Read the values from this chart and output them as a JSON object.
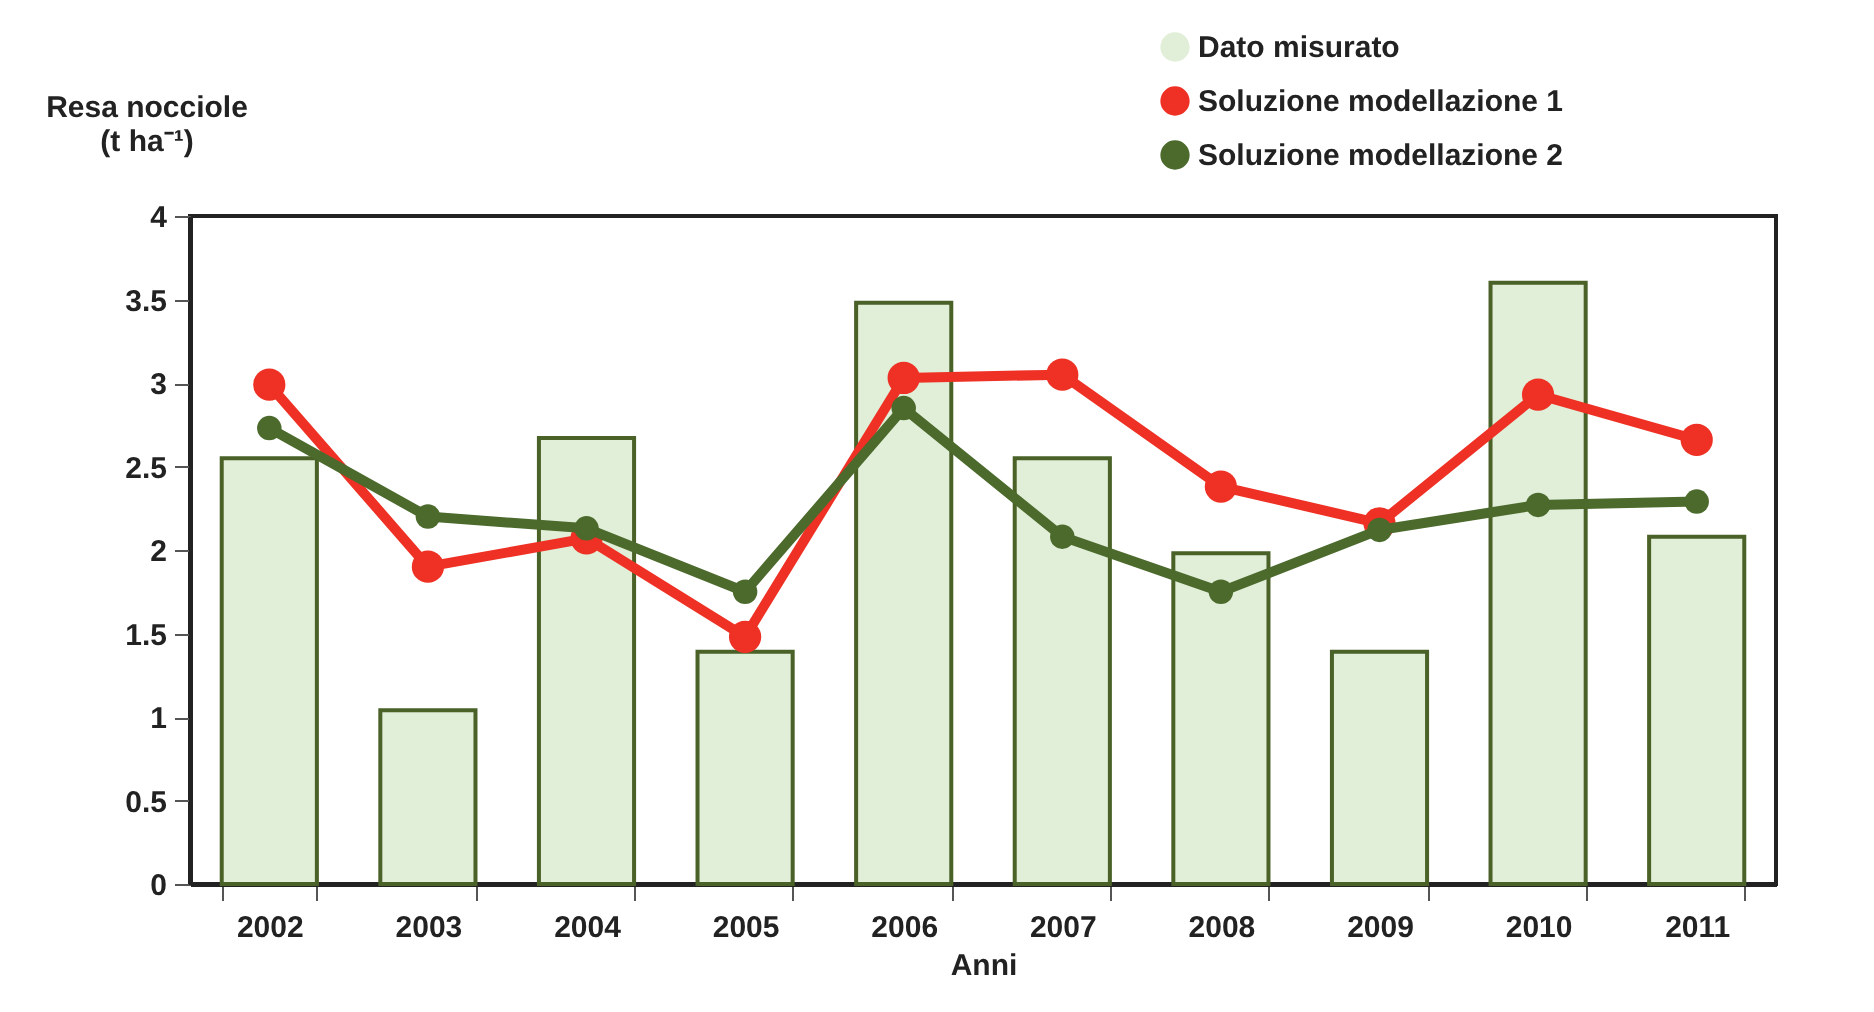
{
  "chart_data": {
    "type": "bar",
    "xlabel": "Anni",
    "ylabel": "Resa nocciole\n(t ha⁻¹)",
    "categories": [
      "2002",
      "2003",
      "2004",
      "2005",
      "2006",
      "2007",
      "2008",
      "2009",
      "2010",
      "2011"
    ],
    "series": [
      {
        "name": "Dato misurato",
        "color": "#e1eed8",
        "values": [
          2.55,
          1.04,
          2.67,
          1.39,
          3.48,
          2.55,
          1.98,
          1.39,
          3.6,
          2.08
        ]
      },
      {
        "name": "Soluzione modellazione 1",
        "type": "line",
        "color": "#ee3124",
        "values": [
          2.99,
          1.9,
          2.07,
          1.48,
          3.03,
          3.05,
          2.38,
          2.16,
          2.93,
          2.66
        ]
      },
      {
        "name": "Soluzione modellazione 2",
        "type": "line",
        "color": "#4b6a2c",
        "values": [
          2.73,
          2.2,
          2.13,
          1.75,
          2.85,
          2.08,
          1.75,
          2.12,
          2.27,
          2.29
        ]
      }
    ],
    "ylim": [
      0,
      4
    ],
    "yticks": [
      0,
      0.5,
      1,
      1.5,
      2,
      2.5,
      3,
      3.5,
      4
    ],
    "grid": false,
    "legend": "top right",
    "marker": "circle",
    "line_style": "solid"
  }
}
